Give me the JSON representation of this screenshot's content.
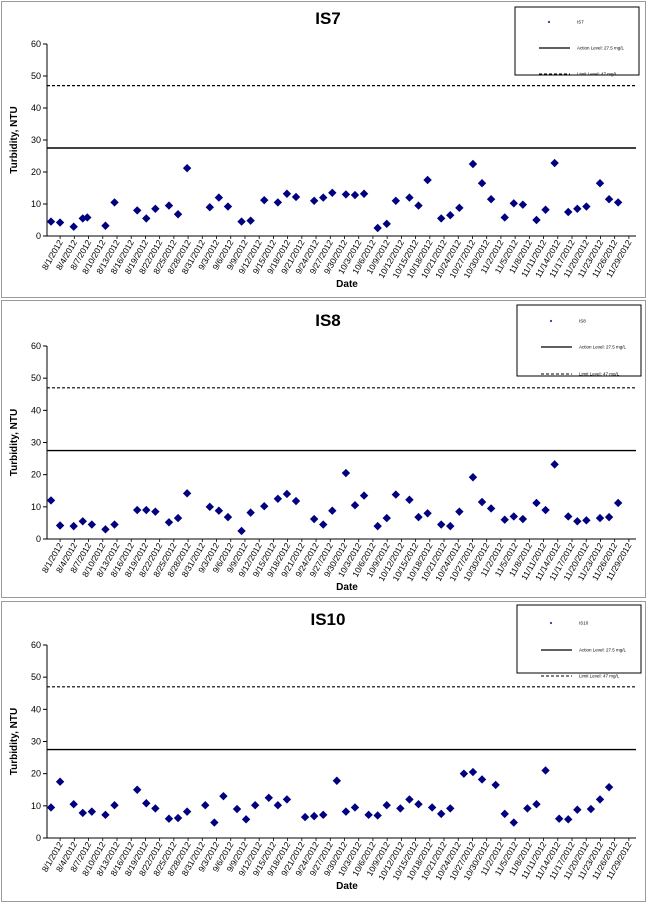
{
  "dates": [
    "8/1/2012",
    "8/4/2012",
    "8/7/2012",
    "8/10/2012",
    "8/13/2012",
    "8/16/2012",
    "8/19/2012",
    "8/22/2012",
    "8/25/2012",
    "8/28/2012",
    "8/31/2012",
    "9/3/2012",
    "9/6/2012",
    "9/9/2012",
    "9/12/2012",
    "9/15/2012",
    "9/18/2012",
    "9/21/2012",
    "9/24/2012",
    "9/27/2012",
    "9/30/2012",
    "10/3/2012",
    "10/6/2012",
    "10/9/2012",
    "10/12/2012",
    "10/15/2012",
    "10/18/2012",
    "10/21/2012",
    "10/24/2012",
    "10/27/2012",
    "10/30/2012",
    "11/2/2012",
    "11/5/2012",
    "11/8/2012",
    "11/11/2012",
    "11/14/2012",
    "11/17/2012",
    "11/20/2012",
    "11/23/2012",
    "11/26/2012",
    "11/29/2012"
  ],
  "colors": {
    "marker": "#000080",
    "line": "#000000",
    "panel_border": "#9a9a9a"
  },
  "chart_data": [
    {
      "type": "scatter",
      "title": "IS7",
      "xlabel": "Date",
      "ylabel": "Turbidity, NTU",
      "ylim": [
        0,
        60
      ],
      "yticks": [
        "0",
        "10",
        "20",
        "30",
        "40",
        "50",
        "60"
      ],
      "x_start": "8/1/2012",
      "x_end": "11/30/2012",
      "legend_position": "top-right",
      "legend": [
        "IS7",
        "Action Level: 27.5 mg/L",
        "Limit Level: 47 mg/L"
      ],
      "action_level": 27.5,
      "limit_level": 47,
      "series": [
        {
          "name": "IS7",
          "points": [
            {
              "x": "8/1/2012",
              "y": 4.5
            },
            {
              "x": "8/3/2012",
              "y": 4.2
            },
            {
              "x": "8/6/2012",
              "y": 2.9
            },
            {
              "x": "8/8/2012",
              "y": 5.5
            },
            {
              "x": "8/9/2012",
              "y": 5.8
            },
            {
              "x": "8/13/2012",
              "y": 3.2
            },
            {
              "x": "8/15/2012",
              "y": 10.5
            },
            {
              "x": "8/20/2012",
              "y": 8.0
            },
            {
              "x": "8/22/2012",
              "y": 5.5
            },
            {
              "x": "8/24/2012",
              "y": 8.5
            },
            {
              "x": "8/27/2012",
              "y": 9.5
            },
            {
              "x": "8/29/2012",
              "y": 6.8
            },
            {
              "x": "8/31/2012",
              "y": 21.2
            },
            {
              "x": "9/5/2012",
              "y": 9.0
            },
            {
              "x": "9/7/2012",
              "y": 12.0
            },
            {
              "x": "9/9/2012",
              "y": 9.2
            },
            {
              "x": "9/12/2012",
              "y": 4.5
            },
            {
              "x": "9/14/2012",
              "y": 4.8
            },
            {
              "x": "9/17/2012",
              "y": 11.2
            },
            {
              "x": "9/20/2012",
              "y": 10.5
            },
            {
              "x": "9/22/2012",
              "y": 13.2
            },
            {
              "x": "9/24/2012",
              "y": 12.2
            },
            {
              "x": "9/28/2012",
              "y": 11.0
            },
            {
              "x": "9/30/2012",
              "y": 12.0
            },
            {
              "x": "10/2/2012",
              "y": 13.5
            },
            {
              "x": "10/5/2012",
              "y": 13.0
            },
            {
              "x": "10/7/2012",
              "y": 12.8
            },
            {
              "x": "10/9/2012",
              "y": 13.2
            },
            {
              "x": "10/12/2012",
              "y": 2.5
            },
            {
              "x": "10/14/2012",
              "y": 3.8
            },
            {
              "x": "10/16/2012",
              "y": 11.0
            },
            {
              "x": "10/19/2012",
              "y": 12.0
            },
            {
              "x": "10/21/2012",
              "y": 9.5
            },
            {
              "x": "10/23/2012",
              "y": 17.5
            },
            {
              "x": "10/26/2012",
              "y": 5.5
            },
            {
              "x": "10/28/2012",
              "y": 6.5
            },
            {
              "x": "10/30/2012",
              "y": 8.8
            },
            {
              "x": "11/2/2012",
              "y": 22.5
            },
            {
              "x": "11/4/2012",
              "y": 16.5
            },
            {
              "x": "11/6/2012",
              "y": 11.5
            },
            {
              "x": "11/9/2012",
              "y": 5.8
            },
            {
              "x": "11/11/2012",
              "y": 10.2
            },
            {
              "x": "11/13/2012",
              "y": 9.8
            },
            {
              "x": "11/16/2012",
              "y": 5.0
            },
            {
              "x": "11/18/2012",
              "y": 8.2
            },
            {
              "x": "11/20/2012",
              "y": 22.8
            },
            {
              "x": "11/23/2012",
              "y": 7.5
            },
            {
              "x": "11/25/2012",
              "y": 8.5
            },
            {
              "x": "11/27/2012",
              "y": 9.2
            },
            {
              "x": "11/30/2012",
              "y": 16.5
            },
            {
              "x": "12/2/2012",
              "y": 11.5
            },
            {
              "x": "12/4/2012",
              "y": 10.5
            }
          ]
        }
      ]
    },
    {
      "type": "scatter",
      "title": "IS8",
      "xlabel": "Date",
      "ylabel": "Turbidity, NTU",
      "ylim": [
        0,
        60
      ],
      "yticks": [
        "0",
        "10",
        "20",
        "30",
        "40",
        "50",
        "60"
      ],
      "x_start": "8/1/2012",
      "x_end": "11/30/2012",
      "legend_position": "top-right",
      "legend": [
        "IS8",
        "Action Level: 27.5 mg/L",
        "Limit Level: 47 mg/L"
      ],
      "action_level": 27.5,
      "limit_level": 47,
      "series": [
        {
          "name": "IS8",
          "points": [
            {
              "x": "8/1/2012",
              "y": 12.0
            },
            {
              "x": "8/3/2012",
              "y": 4.2
            },
            {
              "x": "8/6/2012",
              "y": 4.0
            },
            {
              "x": "8/8/2012",
              "y": 5.5
            },
            {
              "x": "8/10/2012",
              "y": 4.5
            },
            {
              "x": "8/13/2012",
              "y": 3.0
            },
            {
              "x": "8/15/2012",
              "y": 4.5
            },
            {
              "x": "8/20/2012",
              "y": 9.0
            },
            {
              "x": "8/22/2012",
              "y": 9.0
            },
            {
              "x": "8/24/2012",
              "y": 8.5
            },
            {
              "x": "8/27/2012",
              "y": 5.2
            },
            {
              "x": "8/29/2012",
              "y": 6.5
            },
            {
              "x": "8/31/2012",
              "y": 14.2
            },
            {
              "x": "9/5/2012",
              "y": 10.0
            },
            {
              "x": "9/7/2012",
              "y": 8.8
            },
            {
              "x": "9/9/2012",
              "y": 6.8
            },
            {
              "x": "9/12/2012",
              "y": 2.5
            },
            {
              "x": "9/14/2012",
              "y": 8.2
            },
            {
              "x": "9/17/2012",
              "y": 10.2
            },
            {
              "x": "9/20/2012",
              "y": 12.5
            },
            {
              "x": "9/22/2012",
              "y": 14.0
            },
            {
              "x": "9/24/2012",
              "y": 11.8
            },
            {
              "x": "9/28/2012",
              "y": 6.2
            },
            {
              "x": "9/30/2012",
              "y": 4.5
            },
            {
              "x": "10/2/2012",
              "y": 8.8
            },
            {
              "x": "10/5/2012",
              "y": 20.5
            },
            {
              "x": "10/7/2012",
              "y": 10.5
            },
            {
              "x": "10/9/2012",
              "y": 13.5
            },
            {
              "x": "10/12/2012",
              "y": 4.0
            },
            {
              "x": "10/14/2012",
              "y": 6.5
            },
            {
              "x": "10/16/2012",
              "y": 13.8
            },
            {
              "x": "10/19/2012",
              "y": 12.2
            },
            {
              "x": "10/21/2012",
              "y": 6.8
            },
            {
              "x": "10/23/2012",
              "y": 8.0
            },
            {
              "x": "10/26/2012",
              "y": 4.5
            },
            {
              "x": "10/28/2012",
              "y": 4.0
            },
            {
              "x": "10/30/2012",
              "y": 8.5
            },
            {
              "x": "11/2/2012",
              "y": 19.2
            },
            {
              "x": "11/4/2012",
              "y": 11.5
            },
            {
              "x": "11/6/2012",
              "y": 9.5
            },
            {
              "x": "11/9/2012",
              "y": 6.0
            },
            {
              "x": "11/11/2012",
              "y": 7.0
            },
            {
              "x": "11/13/2012",
              "y": 6.2
            },
            {
              "x": "11/16/2012",
              "y": 11.2
            },
            {
              "x": "11/18/2012",
              "y": 9.0
            },
            {
              "x": "11/20/2012",
              "y": 23.2
            },
            {
              "x": "11/23/2012",
              "y": 7.0
            },
            {
              "x": "11/25/2012",
              "y": 5.5
            },
            {
              "x": "11/27/2012",
              "y": 5.8
            },
            {
              "x": "11/30/2012",
              "y": 6.5
            },
            {
              "x": "12/2/2012",
              "y": 6.8
            },
            {
              "x": "12/4/2012",
              "y": 11.2
            }
          ]
        }
      ]
    },
    {
      "type": "scatter",
      "title": "IS10",
      "xlabel": "Date",
      "ylabel": "Turbidity, NTU",
      "ylim": [
        0,
        60
      ],
      "yticks": [
        "0",
        "10",
        "20",
        "30",
        "40",
        "50",
        "60"
      ],
      "x_start": "8/1/2012",
      "x_end": "11/30/2012",
      "legend_position": "top-right",
      "legend": [
        "IS10",
        "Action Level: 27.5 mg/L",
        "Limit Level: 47 mg/L"
      ],
      "action_level": 27.5,
      "limit_level": 47,
      "series": [
        {
          "name": "IS10",
          "points": [
            {
              "x": "8/1/2012",
              "y": 9.5
            },
            {
              "x": "8/3/2012",
              "y": 17.5
            },
            {
              "x": "8/6/2012",
              "y": 10.5
            },
            {
              "x": "8/8/2012",
              "y": 7.8
            },
            {
              "x": "8/10/2012",
              "y": 8.2
            },
            {
              "x": "8/13/2012",
              "y": 7.2
            },
            {
              "x": "8/15/2012",
              "y": 10.2
            },
            {
              "x": "8/20/2012",
              "y": 15.0
            },
            {
              "x": "8/22/2012",
              "y": 10.8
            },
            {
              "x": "8/24/2012",
              "y": 9.2
            },
            {
              "x": "8/27/2012",
              "y": 6.0
            },
            {
              "x": "8/29/2012",
              "y": 6.2
            },
            {
              "x": "8/31/2012",
              "y": 8.2
            },
            {
              "x": "9/4/2012",
              "y": 10.2
            },
            {
              "x": "9/6/2012",
              "y": 4.8
            },
            {
              "x": "9/8/2012",
              "y": 13.0
            },
            {
              "x": "9/11/2012",
              "y": 9.0
            },
            {
              "x": "9/13/2012",
              "y": 5.8
            },
            {
              "x": "9/15/2012",
              "y": 10.2
            },
            {
              "x": "9/18/2012",
              "y": 12.5
            },
            {
              "x": "9/20/2012",
              "y": 10.2
            },
            {
              "x": "9/22/2012",
              "y": 12.0
            },
            {
              "x": "9/26/2012",
              "y": 6.5
            },
            {
              "x": "9/28/2012",
              "y": 6.8
            },
            {
              "x": "9/30/2012",
              "y": 7.2
            },
            {
              "x": "10/3/2012",
              "y": 17.8
            },
            {
              "x": "10/5/2012",
              "y": 8.2
            },
            {
              "x": "10/7/2012",
              "y": 9.5
            },
            {
              "x": "10/10/2012",
              "y": 7.2
            },
            {
              "x": "10/12/2012",
              "y": 7.0
            },
            {
              "x": "10/14/2012",
              "y": 10.2
            },
            {
              "x": "10/17/2012",
              "y": 9.2
            },
            {
              "x": "10/19/2012",
              "y": 12.0
            },
            {
              "x": "10/21/2012",
              "y": 10.5
            },
            {
              "x": "10/24/2012",
              "y": 9.5
            },
            {
              "x": "10/26/2012",
              "y": 7.5
            },
            {
              "x": "10/28/2012",
              "y": 9.2
            },
            {
              "x": "10/31/2012",
              "y": 20.0
            },
            {
              "x": "11/2/2012",
              "y": 20.5
            },
            {
              "x": "11/4/2012",
              "y": 18.2
            },
            {
              "x": "11/7/2012",
              "y": 16.5
            },
            {
              "x": "11/9/2012",
              "y": 7.5
            },
            {
              "x": "11/11/2012",
              "y": 4.8
            },
            {
              "x": "11/14/2012",
              "y": 9.2
            },
            {
              "x": "11/16/2012",
              "y": 10.5
            },
            {
              "x": "11/18/2012",
              "y": 21.0
            },
            {
              "x": "11/21/2012",
              "y": 6.0
            },
            {
              "x": "11/23/2012",
              "y": 5.8
            },
            {
              "x": "11/25/2012",
              "y": 8.8
            },
            {
              "x": "11/28/2012",
              "y": 9.0
            },
            {
              "x": "11/30/2012",
              "y": 12.0
            },
            {
              "x": "12/2/2012",
              "y": 15.8
            }
          ]
        }
      ]
    }
  ]
}
